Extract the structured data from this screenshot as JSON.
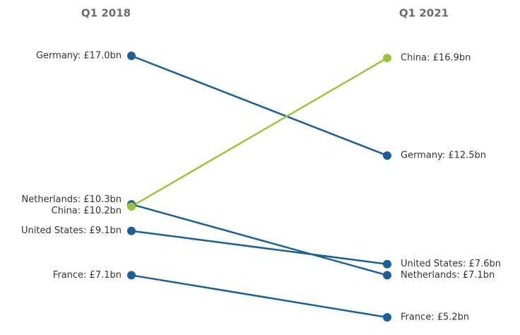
{
  "chart_data": {
    "type": "slope",
    "categories": [
      "Q1 2018",
      "Q1 2021"
    ],
    "series": [
      {
        "color": "#1b5e98",
        "values": [
          17.0,
          12.5
        ],
        "value_labels": [
          "Germany: £17.0bn",
          "Germany: £12.5bn"
        ]
      },
      {
        "color": "#1b5e98",
        "values": [
          10.3,
          7.1
        ],
        "value_labels": [
          "Netherlands: £10.3bn",
          "Netherlands: £7.1bn"
        ]
      },
      {
        "color": "#1b5e98",
        "values": [
          9.1,
          7.6
        ],
        "value_labels": [
          "United States: £9.1bn",
          "United States: £7.6bn"
        ]
      },
      {
        "color": "#1b5e98",
        "values": [
          7.1,
          5.2
        ],
        "value_labels": [
          "France: £7.1bn",
          "France: £5.2bn"
        ]
      },
      {
        "color": "#9cc43a",
        "values": [
          10.2,
          16.9
        ],
        "value_labels": [
          "China: £10.2bn",
          "China: £16.9bn"
        ]
      }
    ]
  }
}
